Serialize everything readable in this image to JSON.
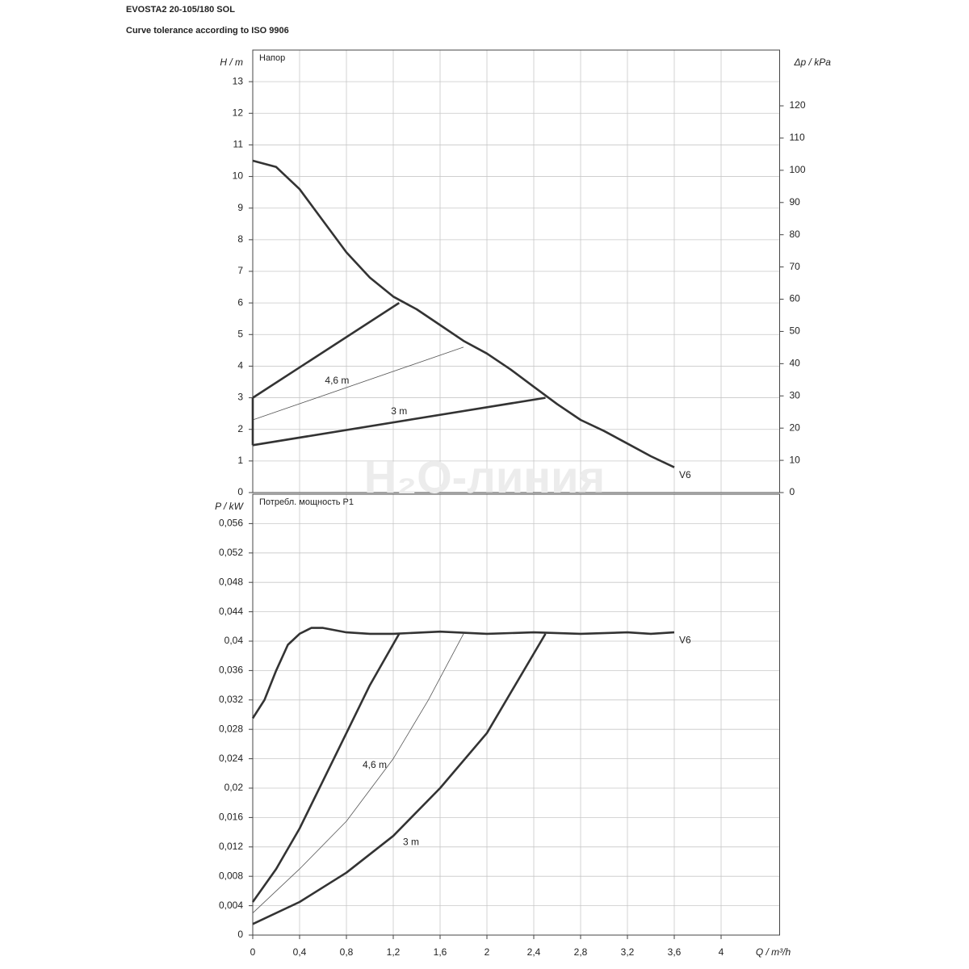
{
  "title": "EVOSTA2 20-105/180 SOL",
  "subtitle": "Curve tolerance according to ISO 9906",
  "watermark": "H₂O-линия",
  "chart_data": [
    {
      "type": "line",
      "title": "Напор",
      "ylabel": "H / m",
      "y2label": "Δp / kPa",
      "xlim": [
        0,
        4.5
      ],
      "ylim": [
        0,
        14
      ],
      "y2lim": [
        0,
        137.3
      ],
      "yticks": [
        0,
        1,
        2,
        3,
        4,
        5,
        6,
        7,
        8,
        9,
        10,
        11,
        12,
        13
      ],
      "y2ticks": [
        0,
        10,
        20,
        30,
        40,
        50,
        60,
        70,
        80,
        90,
        100,
        110,
        120
      ],
      "grid": true,
      "series": [
        {
          "name": "V6",
          "color": "#333333",
          "width": 2.6,
          "x": [
            0,
            0.2,
            0.4,
            0.6,
            0.8,
            1.0,
            1.2,
            1.4,
            1.6,
            1.8,
            2.0,
            2.2,
            2.4,
            2.6,
            2.8,
            3.0,
            3.2,
            3.4,
            3.6
          ],
          "values": [
            10.5,
            10.3,
            9.6,
            8.6,
            7.6,
            6.8,
            6.2,
            5.8,
            5.3,
            4.8,
            4.4,
            3.9,
            3.35,
            2.8,
            2.3,
            1.95,
            1.55,
            1.15,
            0.8
          ]
        },
        {
          "color": "#333333",
          "width": 2.6,
          "x": [
            0,
            1.25
          ],
          "values": [
            3,
            6
          ]
        },
        {
          "name": "4,6 m",
          "color": "#555555",
          "width": 0.8,
          "x": [
            0,
            1.8
          ],
          "values": [
            2.3,
            4.6
          ]
        },
        {
          "name": "3 m",
          "color": "#333333",
          "width": 2.6,
          "x": [
            0,
            2.5
          ],
          "values": [
            1.5,
            3
          ]
        },
        {
          "color": "#333333",
          "width": 2.6,
          "x": [
            0,
            0
          ],
          "values": [
            1.5,
            3
          ]
        }
      ]
    },
    {
      "type": "line",
      "title": "Потребл. мощность P1",
      "ylabel": "P / kW",
      "xlabel": "Q / m³/h",
      "xlim": [
        0,
        4.5
      ],
      "ylim": [
        0,
        0.06
      ],
      "xticks": [
        0,
        {
          "value": 0.4,
          "label": "0,4"
        },
        {
          "value": 0.8,
          "label": "0,8"
        },
        {
          "value": 1.2,
          "label": "1,2"
        },
        {
          "value": 1.6,
          "label": "1,6"
        },
        2,
        {
          "value": 2.4,
          "label": "2,4"
        },
        {
          "value": 2.8,
          "label": "2,8"
        },
        {
          "value": 3.2,
          "label": "3,2"
        },
        {
          "value": 3.6,
          "label": "3,6"
        },
        4
      ],
      "yticks": [
        0,
        {
          "value": 0.004,
          "label": "0,004"
        },
        {
          "value": 0.008,
          "label": "0,008"
        },
        {
          "value": 0.012,
          "label": "0,012"
        },
        {
          "value": 0.016,
          "label": "0,016"
        },
        {
          "value": 0.02,
          "label": "0,02"
        },
        {
          "value": 0.024,
          "label": "0,024"
        },
        {
          "value": 0.028,
          "label": "0,028"
        },
        {
          "value": 0.032,
          "label": "0,032"
        },
        {
          "value": 0.036,
          "label": "0,036"
        },
        {
          "value": 0.04,
          "label": "0,04"
        },
        {
          "value": 0.044,
          "label": "0,044"
        },
        {
          "value": 0.048,
          "label": "0,048"
        },
        {
          "value": 0.052,
          "label": "0,052"
        },
        {
          "value": 0.056,
          "label": "0,056"
        }
      ],
      "grid": true,
      "series": [
        {
          "name": "V6",
          "color": "#333333",
          "width": 2.6,
          "x": [
            0,
            0.1,
            0.2,
            0.3,
            0.4,
            0.5,
            0.6,
            0.8,
            1.0,
            1.2,
            1.6,
            2.0,
            2.4,
            2.8,
            3.2,
            3.4,
            3.6
          ],
          "values": [
            0.0295,
            0.032,
            0.036,
            0.0395,
            0.041,
            0.0418,
            0.0418,
            0.0412,
            0.041,
            0.041,
            0.0413,
            0.041,
            0.0412,
            0.041,
            0.0412,
            0.041,
            0.0412
          ]
        },
        {
          "color": "#333333",
          "width": 2.6,
          "x": [
            0,
            0.2,
            0.4,
            0.6,
            0.8,
            1.0,
            1.25
          ],
          "values": [
            0.0045,
            0.009,
            0.0145,
            0.021,
            0.0275,
            0.034,
            0.041
          ]
        },
        {
          "name": "4,6 m",
          "color": "#555555",
          "width": 0.8,
          "x": [
            0,
            0.4,
            0.8,
            1.2,
            1.5,
            1.8
          ],
          "values": [
            0.003,
            0.009,
            0.0155,
            0.024,
            0.032,
            0.041
          ]
        },
        {
          "name": "3 m",
          "color": "#333333",
          "width": 2.6,
          "x": [
            0,
            0.4,
            0.8,
            1.2,
            1.6,
            2.0,
            2.5
          ],
          "values": [
            0.0015,
            0.0045,
            0.0085,
            0.0135,
            0.02,
            0.0275,
            0.041
          ]
        }
      ]
    }
  ]
}
